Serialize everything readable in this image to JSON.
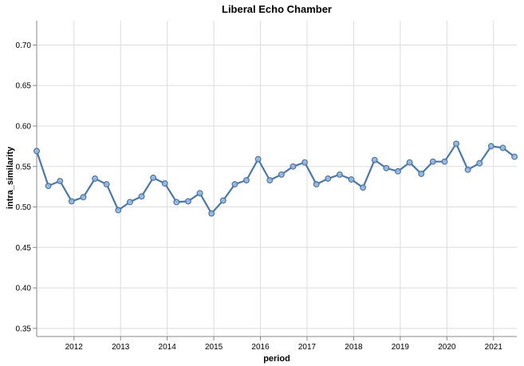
{
  "chart_data": {
    "type": "line",
    "title": "Liberal Echo Chamber",
    "xlabel": "period",
    "ylabel": "intra_similarity",
    "xlim": [
      2011.2,
      2021.5
    ],
    "ylim": [
      0.34,
      0.73
    ],
    "x_ticks": [
      "2012",
      "2013",
      "2014",
      "2015",
      "2016",
      "2017",
      "2018",
      "2019",
      "2020",
      "2021"
    ],
    "y_ticks": [
      "0.35",
      "0.40",
      "0.45",
      "0.50",
      "0.55",
      "0.60",
      "0.65",
      "0.70"
    ],
    "grid": true,
    "legend": "none",
    "colors": {
      "line": "#4c78a8",
      "point_fill": "#9ebbe0"
    },
    "series": [
      {
        "x": [
          2011.2,
          2011.45,
          2011.7,
          2011.95,
          2012.2,
          2012.45,
          2012.7,
          2012.95,
          2013.2,
          2013.45,
          2013.7,
          2013.95,
          2014.2,
          2014.45,
          2014.7,
          2014.95,
          2015.2,
          2015.45,
          2015.7,
          2015.95,
          2016.2,
          2016.45,
          2016.7,
          2016.95,
          2017.2,
          2017.45,
          2017.7,
          2017.95,
          2018.2,
          2018.45,
          2018.7,
          2018.95,
          2019.2,
          2019.45,
          2019.7,
          2019.95,
          2020.2,
          2020.45,
          2020.7,
          2020.95,
          2021.2,
          2021.45
        ],
        "values": [
          0.569,
          0.526,
          0.532,
          0.507,
          0.512,
          0.535,
          0.528,
          0.496,
          0.506,
          0.513,
          0.536,
          0.529,
          0.506,
          0.507,
          0.517,
          0.492,
          0.508,
          0.528,
          0.533,
          0.559,
          0.533,
          0.54,
          0.55,
          0.555,
          0.528,
          0.535,
          0.54,
          0.534,
          0.524,
          0.558,
          0.548,
          0.544,
          0.555,
          0.541,
          0.556,
          0.556,
          0.578,
          0.546,
          0.554,
          0.575,
          0.573,
          0.562
        ]
      }
    ]
  }
}
